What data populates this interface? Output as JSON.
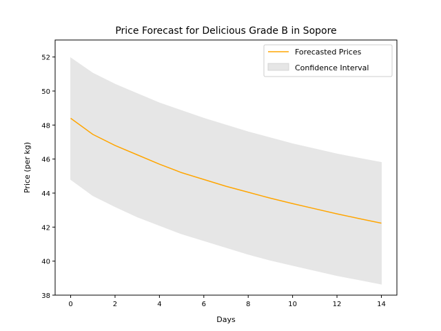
{
  "chart_data": {
    "type": "line",
    "title": "Price Forecast for Delicious Grade B in Sopore",
    "xlabel": "Days",
    "ylabel": "Price (per kg)",
    "xlim": [
      -0.7,
      14.7
    ],
    "ylim": [
      38,
      53
    ],
    "xticks": [
      0,
      2,
      4,
      6,
      8,
      10,
      12,
      14
    ],
    "yticks": [
      38,
      40,
      42,
      44,
      46,
      48,
      50,
      52
    ],
    "x": [
      0,
      1,
      2,
      3,
      4,
      5,
      6,
      7,
      8,
      9,
      10,
      11,
      12,
      13,
      14
    ],
    "series": [
      {
        "name": "Forecasted Prices",
        "color": "#ffa500",
        "values": [
          48.4,
          47.45,
          46.8,
          46.25,
          45.7,
          45.2,
          44.8,
          44.4,
          44.05,
          43.7,
          43.38,
          43.08,
          42.78,
          42.5,
          42.23
        ]
      }
    ],
    "confidence_interval": {
      "name": "Confidence Interval",
      "color": "#e6e6e6",
      "upper": [
        51.95,
        51.05,
        50.4,
        49.85,
        49.3,
        48.85,
        48.4,
        48.0,
        47.6,
        47.25,
        46.9,
        46.6,
        46.3,
        46.05,
        45.8
      ],
      "lower": [
        44.8,
        43.85,
        43.2,
        42.6,
        42.1,
        41.6,
        41.2,
        40.8,
        40.4,
        40.05,
        39.75,
        39.45,
        39.15,
        38.9,
        38.65
      ]
    },
    "legend_position": "top-right",
    "grid": false
  }
}
